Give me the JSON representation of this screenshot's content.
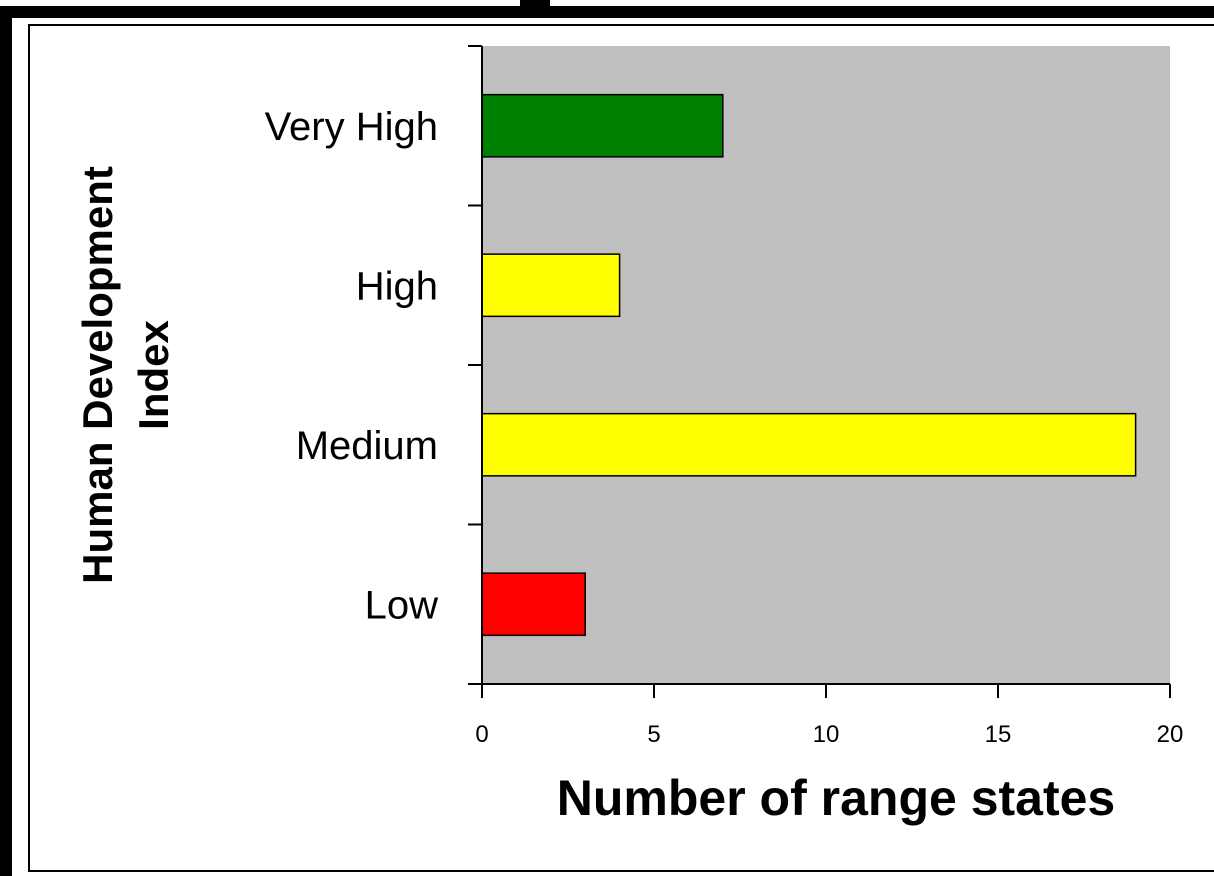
{
  "chart_data": {
    "type": "bar",
    "orientation": "horizontal",
    "categories": [
      "Very High",
      "High",
      "Medium",
      "Low"
    ],
    "values": [
      7,
      4,
      19,
      3
    ],
    "colors": [
      "#008000",
      "#ffff00",
      "#ffff00",
      "#ff0000"
    ],
    "xlabel": "Number of range states",
    "ylabel_line1": "Human Development",
    "ylabel_line2": "Index",
    "xlim": [
      0,
      20
    ],
    "xticks": [
      "0",
      "5",
      "10",
      "15",
      "20"
    ],
    "plot_background": "#c0c0c0",
    "grid": false,
    "legend": "none"
  }
}
